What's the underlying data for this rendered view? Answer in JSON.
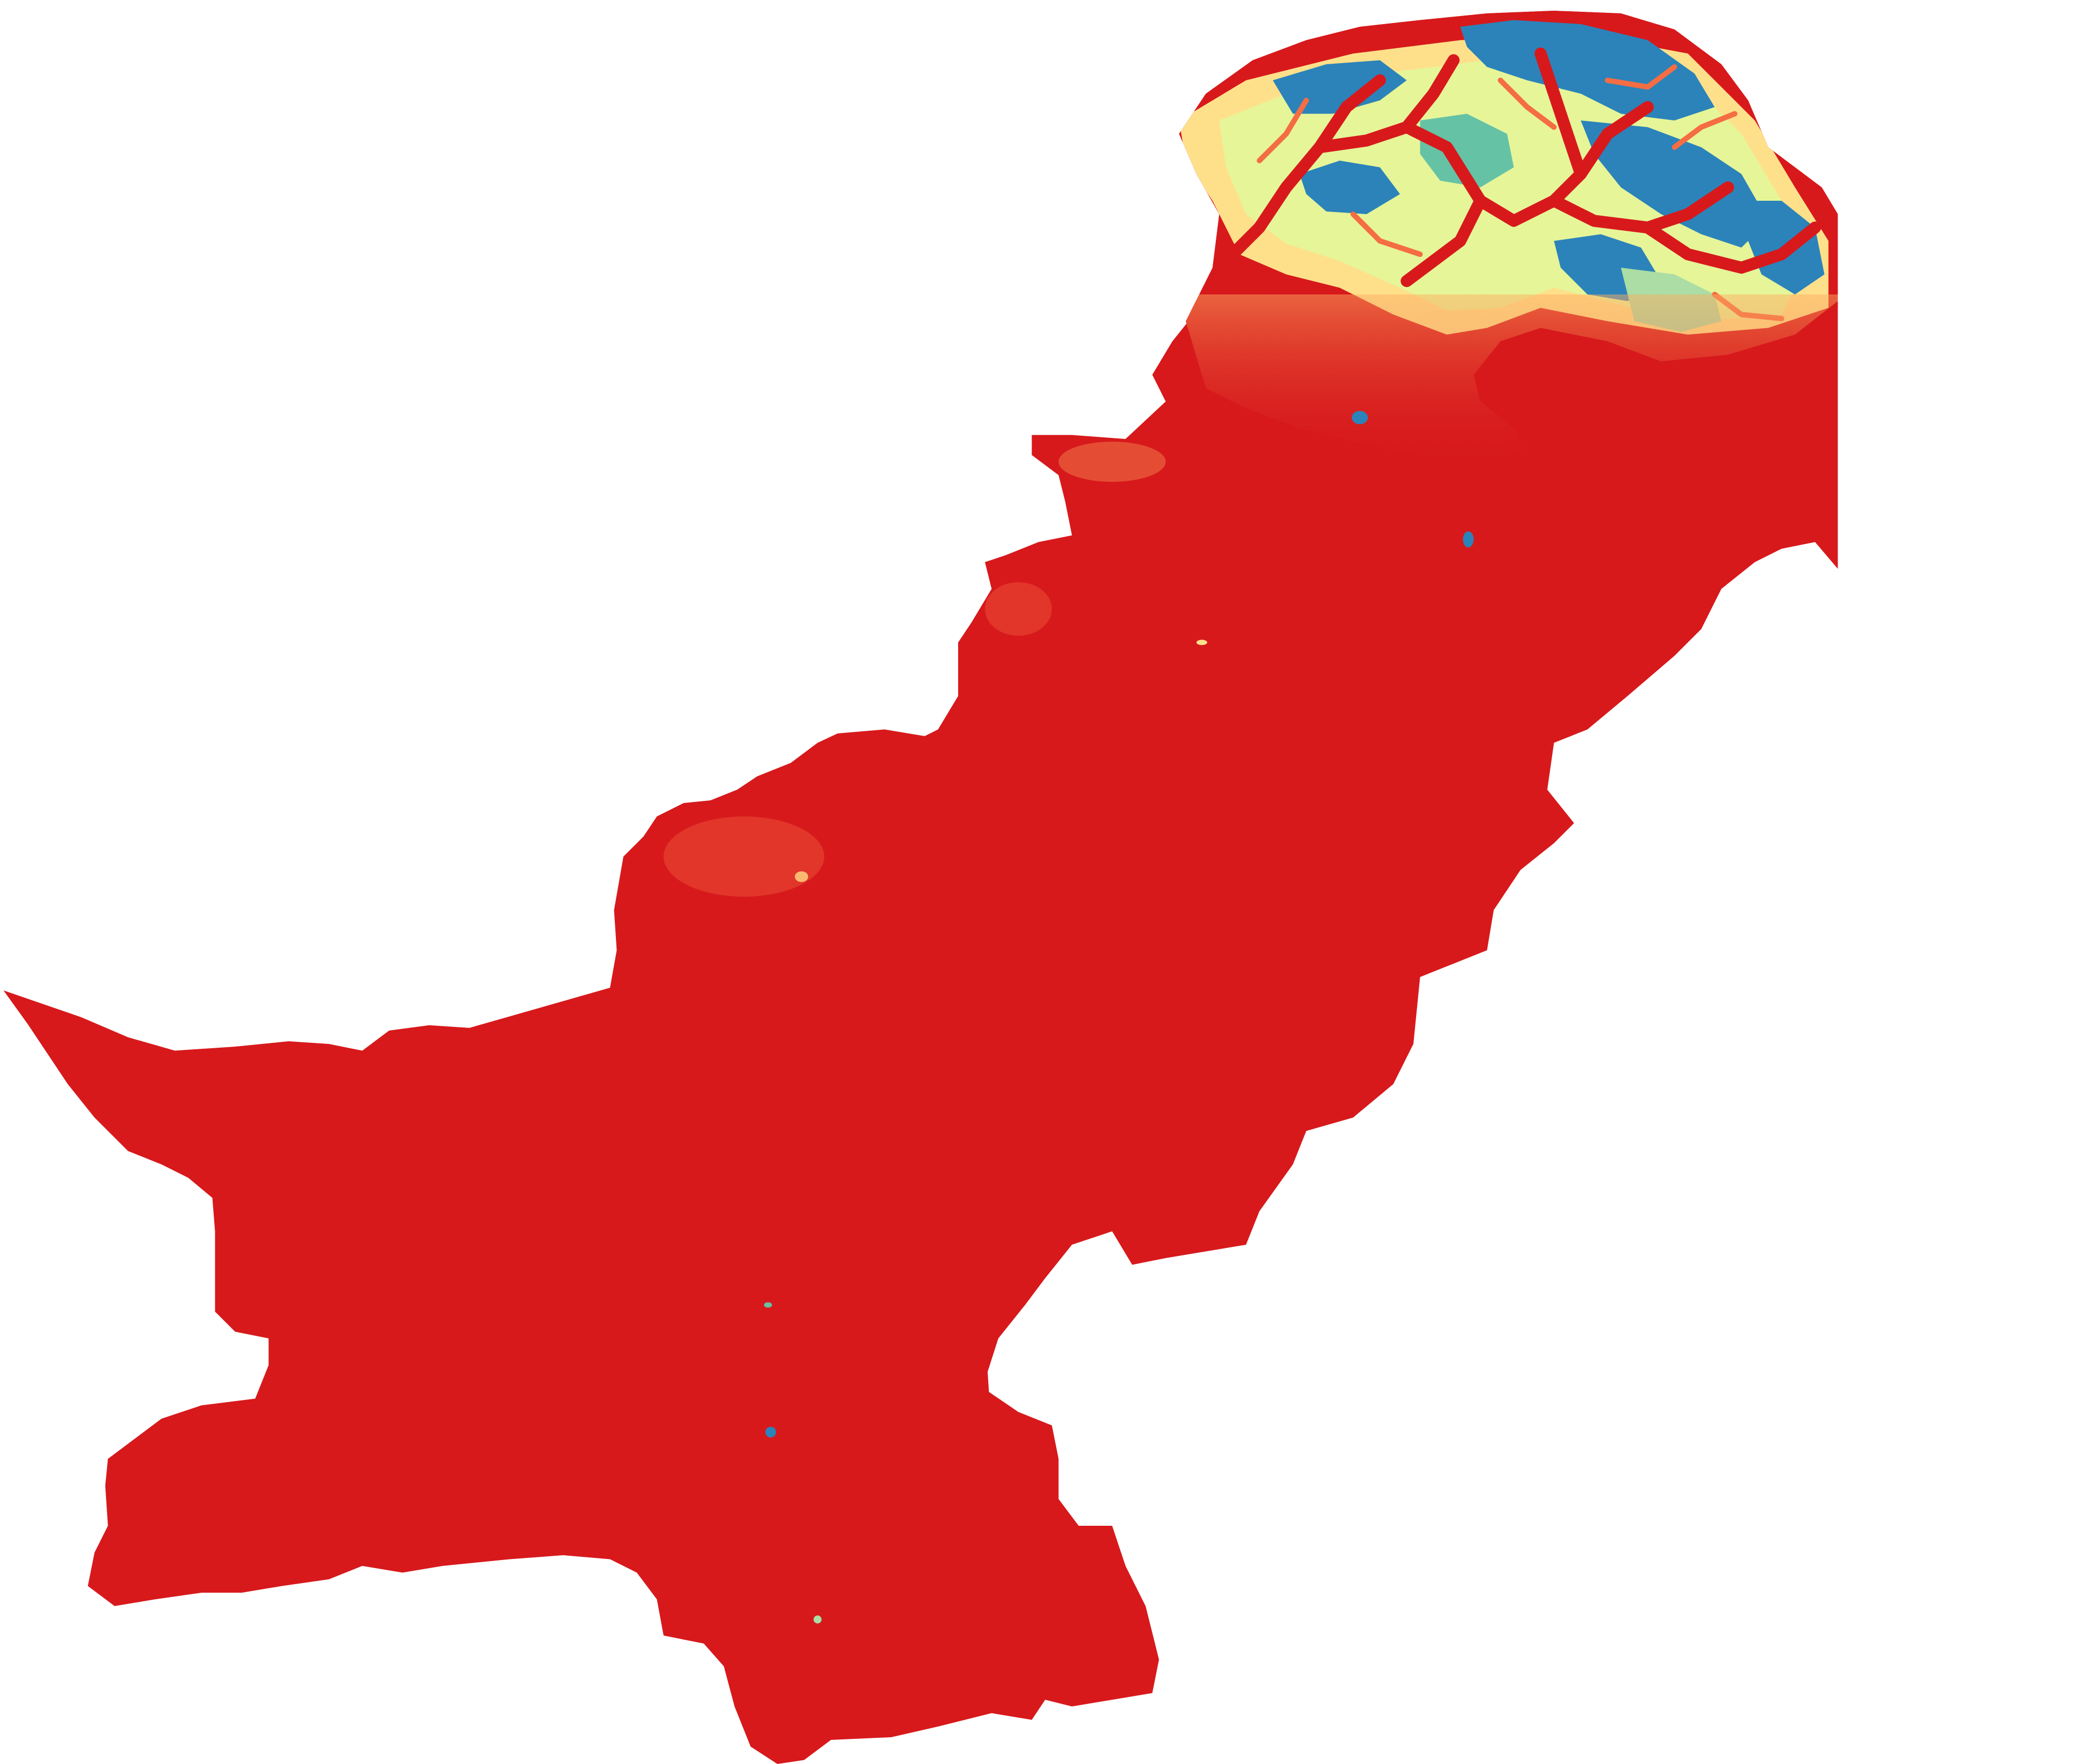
{
  "map": {
    "background_color": "#ffffff",
    "land_color": "#d7191c",
    "elevation_palette": [
      "#d7191c",
      "#f46d43",
      "#fdae61",
      "#fee08b",
      "#e6f598",
      "#abdda4",
      "#66c2a5",
      "#2b83ba"
    ],
    "highland_region": "northern-mountains",
    "scale_type": "continuous-elevation"
  }
}
